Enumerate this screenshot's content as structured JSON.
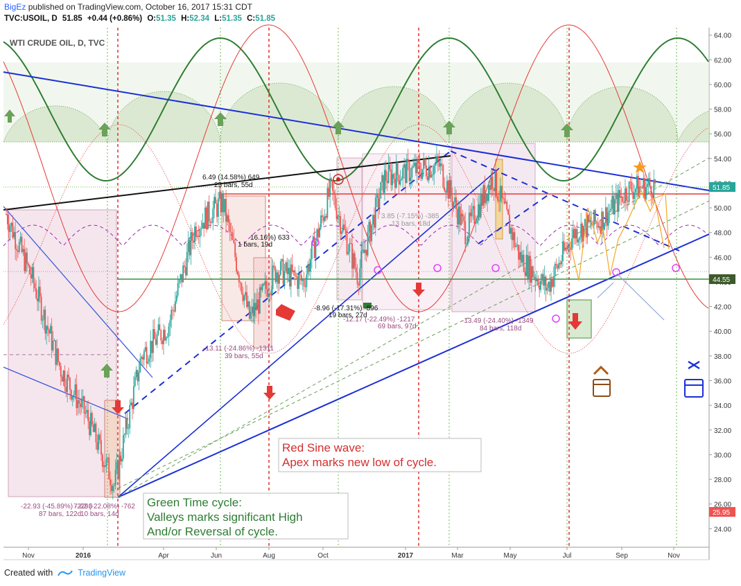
{
  "header": {
    "author": "BigEz",
    "published_text": "published on TradingView.com, October 16, 2017 15:31 CDT",
    "symbol": "TVC:USOIL, D",
    "last": "51.85",
    "change": "+0.44 (+0.86%)",
    "o_label": "O:",
    "o_val": "51.35",
    "h_label": "H:",
    "h_val": "52.34",
    "l_label": "L:",
    "l_val": "51.35",
    "c_label": "C:",
    "c_val": "51.85"
  },
  "footer": {
    "created_with": "Created with",
    "brand": "TradingView"
  },
  "chart_data": {
    "type": "line",
    "title": "WTI CRUDE OIL, D, TVC",
    "ylim": [
      22.5,
      64.6
    ],
    "y_ticks": [
      "64.00",
      "62.00",
      "60.00",
      "58.00",
      "56.00",
      "54.00",
      "52.00",
      "50.00",
      "48.00",
      "46.00",
      "44.00",
      "42.00",
      "40.00",
      "38.00",
      "36.00",
      "34.00",
      "32.00",
      "30.00",
      "28.00",
      "26.00",
      "24.00"
    ],
    "x_ticks": [
      "Nov",
      "2016",
      "Apr",
      "Jun",
      "Aug",
      "Oct",
      "2017",
      "Mar",
      "May",
      "Jul",
      "Sep",
      "Nov"
    ],
    "price_labels": {
      "last": "51.85",
      "level": "44.55",
      "low": "25.95"
    },
    "series": [
      {
        "x": [
          "2015-10",
          "2015-11",
          "2015-12",
          "2016-01",
          "2016-02",
          "2016-03",
          "2016-04",
          "2016-05",
          "2016-06",
          "2016-07",
          "2016-08",
          "2016-09",
          "2016-10",
          "2016-11",
          "2016-12",
          "2017-01",
          "2017-02",
          "2017-03",
          "2017-04",
          "2017-05",
          "2017-06",
          "2017-07",
          "2017-08",
          "2017-09",
          "2017-10"
        ],
        "values": [
          49.5,
          44.0,
          37.0,
          33.0,
          27.5,
          38.0,
          40.5,
          48.5,
          50.5,
          41.0,
          45.0,
          44.0,
          51.5,
          44.5,
          52.5,
          53.0,
          53.5,
          48.0,
          52.5,
          46.0,
          43.5,
          48.0,
          49.0,
          51.5,
          51.85
        ]
      }
    ],
    "annotations": {
      "a1": "6.49 (14.58%) 649",
      "a2": "25 bars, 55d",
      "a3": "16.16%) 633",
      "a4": "1 bars, 19d",
      "a5": "-13.11 (-24.86%) -1311",
      "a6": "39 bars, 55d",
      "a7": "-8.96 (-17.31%) -896",
      "a8": "19 bars, 27d",
      "a9": "-12.17 (-22.49%) -1217",
      "a10": "69 bars, 97d",
      "a11": "3.85 (-7.15%) -385",
      "a12": "13 bars, 18d",
      "a13": "-13.49 (-24.40%) -1349",
      "a14": "84 bars, 118d",
      "a15": "-22.93 (-45.89%) -2293",
      "a16": "87 bars, 122d",
      "a17": "7.62 (-22.08%) -762",
      "a18": "10 bars, 14d"
    },
    "notes": {
      "red_sine_1": "Red Sine wave:",
      "red_sine_2": "Apex marks new low of cycle.",
      "green_1": "Green Time cycle:",
      "green_2": "Valleys marks significant High",
      "green_3": "And/or Reversal of cycle."
    },
    "colors": {
      "up": "#26a69a",
      "down": "#ef5350",
      "green_cycle": "#2e7d32",
      "red_sine": "#e53935",
      "trend_blue": "#1a2fd6",
      "purple": "#9c27b0",
      "magenta": "#e040fb",
      "level": "#388e3c"
    }
  }
}
